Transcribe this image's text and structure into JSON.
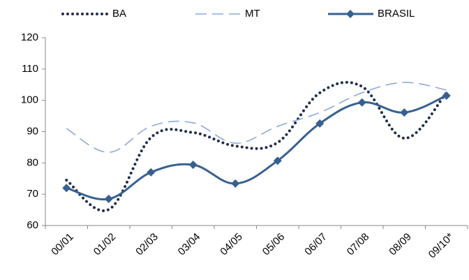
{
  "chart_data": {
    "type": "line",
    "categories": [
      "00/01",
      "01/02",
      "02/03",
      "03/04",
      "04/05",
      "05/06",
      "06/07",
      "07/08",
      "08/09",
      "09/10*"
    ],
    "series": [
      {
        "name": "BA",
        "color": "#1f2d4d",
        "style": "dotted",
        "values": [
          74.5,
          65.1,
          88.1,
          89.7,
          85.4,
          86.5,
          102.4,
          104.4,
          87.9,
          102.4
        ]
      },
      {
        "name": "MT",
        "color": "#8eaadb",
        "style": "dashed",
        "values": [
          91,
          83.4,
          91.7,
          92.8,
          86.3,
          91.7,
          96.1,
          102.4,
          105.7,
          103.3
        ]
      },
      {
        "name": "BRASIL",
        "color": "#376092",
        "style": "solid",
        "marker": "diamond",
        "values": [
          72,
          68.5,
          77,
          79.4,
          73.4,
          80.7,
          92.6,
          99.3,
          96.1,
          101.5
        ]
      }
    ],
    "ylim": [
      60,
      120
    ],
    "yticks": [
      60,
      70,
      80,
      90,
      100,
      110,
      120
    ],
    "grid": false,
    "legend": "top"
  }
}
